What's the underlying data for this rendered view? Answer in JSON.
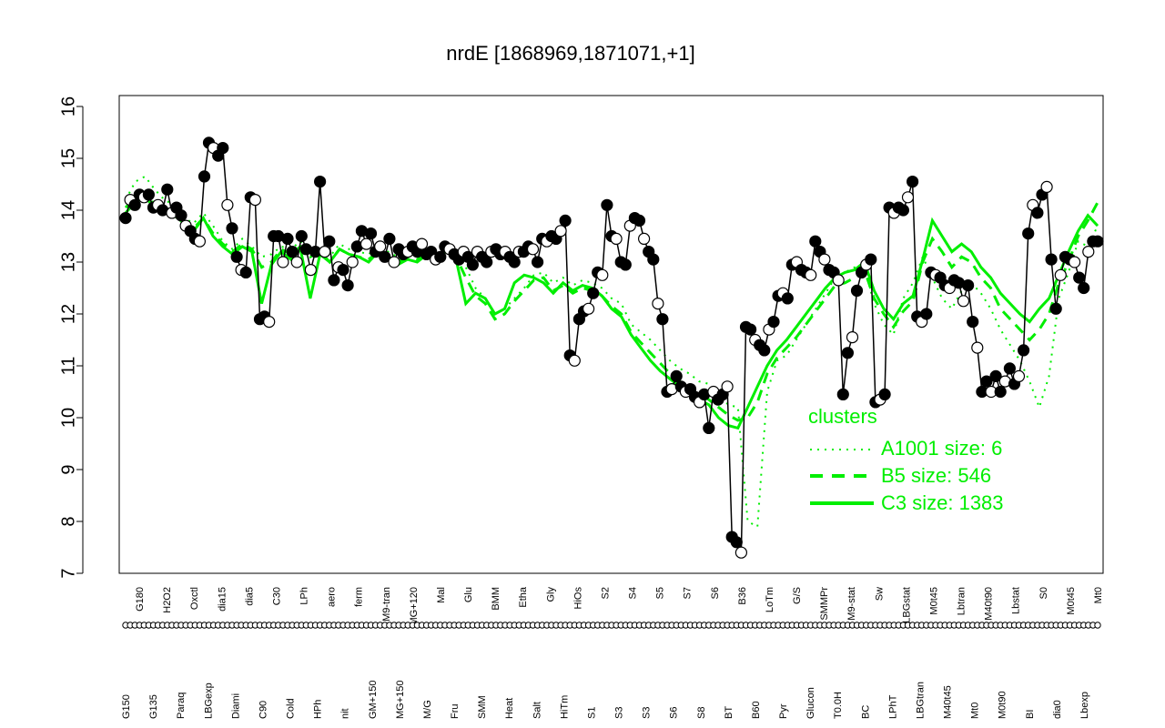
{
  "chart_data": {
    "type": "line",
    "title": "nrdE [1868969,1871071,+1]",
    "xlabel": "",
    "ylabel": "",
    "ylim": [
      7,
      16
    ],
    "yticks": [
      7,
      8,
      9,
      10,
      11,
      12,
      13,
      14,
      15,
      16
    ],
    "grid": false,
    "legend": {
      "title": "clusters",
      "placement": "right",
      "entries": [
        {
          "label": "A1001 size: 6",
          "style": "dotted"
        },
        {
          "label": "B5 size: 546",
          "style": "dashed"
        },
        {
          "label": "C3 size: 1383",
          "style": "solid"
        }
      ]
    },
    "x_tick_labels": [
      "G150",
      "G180",
      "G135",
      "H2O2",
      "Paraq",
      "Oxctl",
      "LBGexp",
      "dia15",
      "Diami",
      "dia5",
      "C90",
      "C30",
      "Cold",
      "LPh",
      "HPh",
      "aero",
      "nit",
      "ferm",
      "GM+150",
      "M9-tran",
      "MG+150",
      "MG+120",
      "M/G",
      "Mal",
      "Fru",
      "Glu",
      "SMM",
      "BMM",
      "Heat",
      "Etha",
      "Salt",
      "Gly",
      "HiTm",
      "HiOs",
      "S1",
      "S2",
      "S3",
      "S4",
      "S3",
      "S5",
      "S6",
      "S7",
      "S8",
      "S6",
      "BT",
      "B36",
      "B60",
      "LoTm",
      "Pyr",
      "G/S",
      "Glucon",
      "SMMPr",
      "T0.0H",
      "M9-stat",
      "BC",
      "Sw",
      "LPhT",
      "LBGstat",
      "LBGtran",
      "M0t45",
      "M40t45",
      "Lbtran",
      "Mt0",
      "M40t90",
      "M0t90",
      "Lbstat",
      "BI",
      "S0",
      "dia0",
      "M0t45",
      "Lbexp",
      "Mt0"
    ],
    "colors": {
      "series": "#000000",
      "cluster": "#00ee00"
    },
    "series": [
      {
        "name": "",
        "values": [
          13.85,
          14.2,
          14.1,
          14.3,
          14.25,
          14.3,
          14.05,
          14.1,
          14.0,
          14.4,
          13.95,
          14.05,
          13.9,
          13.7,
          13.6,
          13.45,
          13.4,
          14.65,
          15.3,
          15.2,
          15.05,
          15.2,
          14.1,
          13.65,
          13.1,
          12.85,
          12.8,
          14.25,
          14.2,
          11.9,
          11.95,
          11.85,
          13.5,
          13.5,
          13.0,
          13.45,
          13.2,
          13.0,
          13.5,
          13.25,
          12.85,
          13.2,
          14.55,
          13.2,
          13.4,
          12.65,
          12.9,
          12.85,
          12.55,
          13.0,
          13.3,
          13.6,
          13.35,
          13.55,
          13.2,
          13.3,
          13.1,
          13.45,
          13.0,
          13.25,
          13.15,
          13.2,
          13.3,
          13.2,
          13.35,
          13.15,
          13.2,
          13.05,
          13.1,
          13.3,
          13.25,
          13.15,
          13.05,
          13.2,
          13.1,
          12.95,
          13.2,
          13.1,
          13.0,
          13.2,
          13.25,
          13.15,
          13.2,
          13.1,
          13.0,
          13.2,
          13.2,
          13.3,
          13.25,
          13.0,
          13.45,
          13.4,
          13.5,
          13.45,
          13.6,
          13.8,
          11.2,
          11.1,
          11.9,
          12.05,
          12.1,
          12.4,
          12.8,
          12.75,
          14.1,
          13.5,
          13.45,
          13.0,
          12.95,
          13.7,
          13.85,
          13.8,
          13.45,
          13.2,
          13.05,
          12.2,
          11.9,
          10.5,
          10.55,
          10.8,
          10.6,
          10.5,
          10.55,
          10.4,
          10.3,
          10.45,
          9.8,
          10.5,
          10.35,
          10.45,
          10.6,
          7.7,
          7.6,
          7.4,
          11.75,
          11.7,
          11.5,
          11.4,
          11.3,
          11.7,
          11.85,
          12.35,
          12.4,
          12.3,
          12.95,
          13.0,
          12.85,
          12.8,
          12.75,
          13.4,
          13.2,
          13.05,
          12.85,
          12.8,
          12.65,
          10.45,
          11.25,
          11.55,
          12.45,
          12.8,
          12.95,
          13.05,
          10.3,
          10.35,
          10.45,
          14.05,
          13.95,
          14.05,
          14.0,
          14.25,
          14.55,
          11.95,
          11.85,
          12.0,
          12.8,
          12.75,
          12.7,
          12.55,
          12.5,
          12.65,
          12.6,
          12.25,
          12.55,
          11.85,
          11.35,
          10.5,
          10.7,
          10.5,
          10.8,
          10.5,
          10.7,
          10.95,
          10.65,
          10.8,
          11.3,
          13.55,
          14.1,
          13.95,
          14.3,
          14.45,
          13.05,
          12.1,
          12.75,
          13.1,
          13.05,
          13.0,
          12.7,
          12.5,
          13.2,
          13.4,
          13.4
        ]
      }
    ],
    "cluster_lines": [
      {
        "name": "A1001 size: 6",
        "values": [
          14.2,
          14.55,
          14.65,
          14.4,
          14.2,
          14.1,
          13.85,
          13.75,
          13.95,
          13.7,
          13.4,
          13.25,
          13.45,
          13.3,
          13.1,
          13.15,
          13.3,
          13.25,
          13.4,
          13.2,
          13.3,
          13.1,
          13.35,
          13.25,
          13.2,
          13.15,
          13.3,
          13.2,
          13.1,
          13.2,
          13.15,
          13.25,
          13.2,
          13.3,
          13.2,
          12.9,
          12.5,
          12.3,
          12.0,
          12.1,
          12.3,
          12.5,
          12.75,
          12.8,
          12.6,
          12.7,
          12.55,
          12.65,
          12.6,
          12.5,
          12.3,
          12.2,
          11.8,
          11.65,
          11.5,
          11.3,
          11.1,
          10.95,
          10.85,
          10.7,
          10.65,
          10.45,
          10.25,
          10.2,
          8.0,
          7.9,
          10.5,
          11.1,
          11.2,
          11.5,
          11.8,
          12.1,
          12.4,
          12.7,
          12.8,
          12.9,
          12.9,
          12.2,
          11.8,
          11.6,
          12.3,
          12.6,
          13.1,
          12.7,
          12.3,
          12.1,
          12.45,
          12.6,
          12.4,
          12.1,
          11.7,
          11.4,
          11.1,
          10.7,
          10.2,
          10.8,
          12.3,
          12.8,
          13.4,
          13.3,
          13.7
        ]
      },
      {
        "name": "B5 size: 546",
        "values": [
          14.05,
          14.25,
          14.35,
          14.1,
          14.05,
          13.95,
          13.8,
          13.65,
          13.85,
          13.55,
          13.35,
          13.2,
          13.35,
          13.25,
          12.9,
          13.0,
          13.25,
          13.15,
          13.3,
          13.1,
          13.2,
          13.0,
          13.25,
          13.15,
          13.1,
          13.05,
          13.2,
          13.1,
          13.0,
          13.1,
          13.05,
          13.15,
          13.1,
          13.2,
          13.1,
          12.7,
          12.35,
          12.2,
          11.9,
          12.0,
          12.25,
          12.45,
          12.65,
          12.7,
          12.45,
          12.55,
          12.4,
          12.5,
          12.45,
          12.35,
          12.15,
          12.0,
          11.65,
          11.45,
          11.25,
          11.05,
          10.85,
          10.7,
          10.55,
          10.45,
          10.35,
          10.2,
          10.05,
          9.95,
          10.0,
          10.3,
          10.85,
          11.15,
          11.35,
          11.55,
          11.8,
          12.05,
          12.3,
          12.55,
          12.6,
          12.7,
          12.85,
          12.3,
          12.0,
          11.75,
          12.05,
          12.25,
          13.0,
          13.45,
          13.2,
          12.9,
          13.1,
          13.0,
          12.7,
          12.5,
          12.1,
          11.9,
          11.7,
          11.5,
          11.7,
          12.0,
          12.6,
          13.0,
          13.5,
          13.8,
          14.15
        ]
      },
      {
        "name": "C3 size: 1383",
        "values": [
          13.95,
          14.15,
          14.25,
          14.05,
          14.0,
          13.9,
          13.75,
          13.6,
          13.85,
          13.5,
          13.3,
          13.15,
          13.3,
          13.2,
          12.2,
          12.95,
          13.2,
          13.05,
          13.25,
          12.3,
          13.15,
          13.0,
          13.25,
          13.15,
          13.1,
          13.0,
          13.2,
          13.05,
          12.95,
          13.05,
          13.0,
          13.15,
          13.1,
          13.2,
          13.05,
          12.2,
          12.4,
          12.3,
          12.0,
          12.1,
          12.6,
          12.75,
          12.7,
          12.6,
          12.4,
          12.6,
          12.45,
          12.55,
          12.5,
          12.35,
          12.1,
          11.95,
          11.6,
          11.35,
          11.1,
          10.9,
          10.75,
          10.6,
          10.45,
          10.35,
          10.25,
          10.0,
          9.85,
          9.8,
          10.2,
          10.6,
          11.0,
          11.3,
          11.5,
          11.75,
          12.0,
          12.25,
          12.5,
          12.7,
          12.8,
          12.85,
          13.0,
          12.45,
          12.1,
          11.9,
          12.2,
          12.35,
          13.05,
          13.8,
          13.5,
          13.2,
          13.35,
          13.2,
          12.9,
          12.7,
          12.4,
          12.2,
          12.0,
          11.85,
          12.1,
          12.3,
          12.75,
          13.2,
          13.6,
          13.9,
          13.7
        ]
      }
    ]
  }
}
